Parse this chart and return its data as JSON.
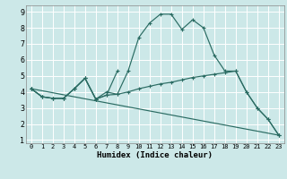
{
  "bg_color": "#cce8e8",
  "line_color": "#2a6b62",
  "xlabel": "Humidex (Indice chaleur)",
  "ylim": [
    0.8,
    9.4
  ],
  "xlim": [
    -0.5,
    23.5
  ],
  "yticks": [
    1,
    2,
    3,
    4,
    5,
    6,
    7,
    8,
    9
  ],
  "xticks": [
    0,
    1,
    2,
    3,
    4,
    5,
    6,
    7,
    8,
    9,
    10,
    11,
    12,
    13,
    14,
    15,
    16,
    17,
    18,
    19,
    20,
    21,
    22,
    23
  ],
  "line1_x": [
    0,
    1,
    2,
    3,
    4,
    5,
    6,
    7,
    8,
    9,
    10,
    11,
    12,
    13,
    14,
    15,
    16,
    17,
    18,
    19,
    20,
    21,
    22,
    23
  ],
  "line1_y": [
    4.2,
    3.7,
    3.6,
    3.6,
    4.2,
    4.85,
    3.55,
    4.0,
    3.85,
    5.3,
    7.4,
    8.3,
    8.85,
    8.85,
    7.9,
    8.5,
    8.0,
    6.3,
    5.3,
    5.3,
    4.0,
    3.0,
    2.3,
    1.3
  ],
  "line2_x": [
    0,
    1,
    2,
    3,
    4,
    5,
    6,
    7,
    8,
    9,
    10,
    11,
    12,
    13,
    14,
    15,
    16,
    17,
    18,
    19,
    20,
    21,
    22,
    23
  ],
  "line2_y": [
    4.2,
    3.7,
    3.6,
    3.6,
    4.2,
    4.85,
    3.55,
    3.8,
    3.85,
    4.0,
    4.2,
    4.35,
    4.5,
    4.6,
    4.75,
    4.9,
    5.0,
    5.1,
    5.2,
    5.3,
    4.0,
    3.0,
    2.3,
    1.3
  ],
  "line3_x": [
    0,
    23
  ],
  "line3_y": [
    4.2,
    1.3
  ],
  "line4_x": [
    0,
    1,
    2,
    3,
    4,
    5,
    6,
    7,
    8
  ],
  "line4_y": [
    4.2,
    3.7,
    3.6,
    3.6,
    4.2,
    4.85,
    3.55,
    3.8,
    5.3
  ]
}
